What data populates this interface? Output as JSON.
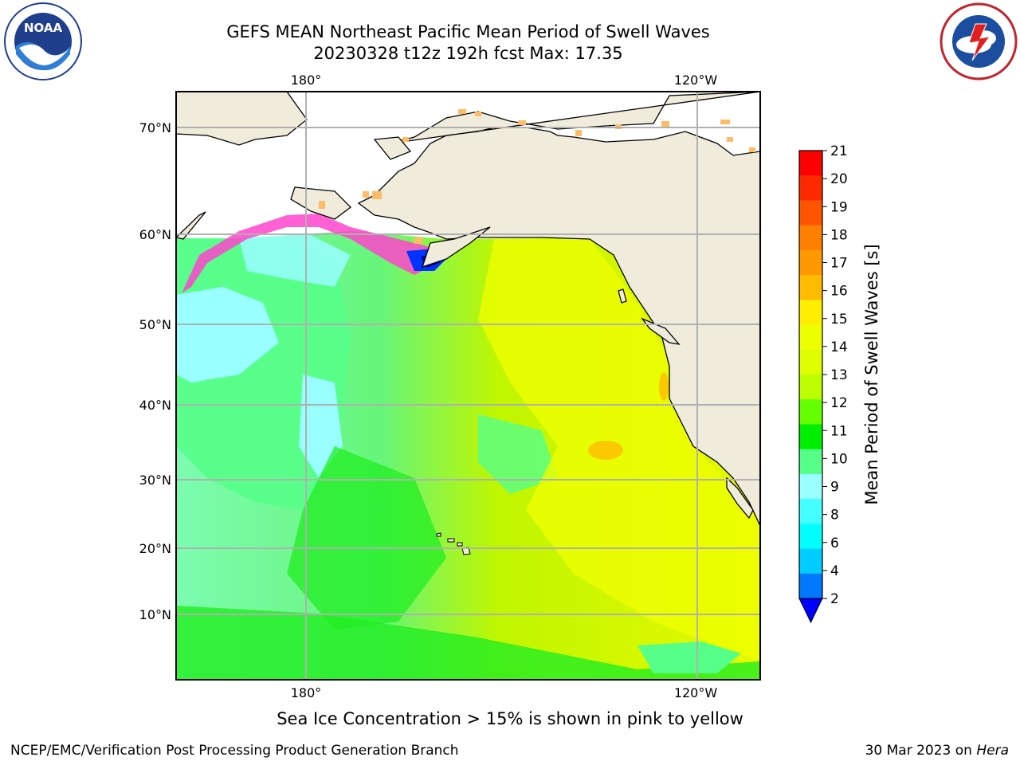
{
  "header": {
    "title_line1": "GEFS MEAN Northeast Pacific Mean Period of Swell Waves",
    "title_line2": "20230328 t12z 192h fcst   Max: 17.35"
  },
  "logos": {
    "left": "noaa-logo",
    "right": "nws-logo"
  },
  "map": {
    "lat_labels": [
      "70°N",
      "60°N",
      "50°N",
      "40°N",
      "30°N",
      "20°N",
      "10°N"
    ],
    "lon_labels_top": [
      "180°",
      "120°W"
    ],
    "lon_labels_bottom": [
      "180°",
      "120°W"
    ],
    "field_colors": {
      "cyan": "#99ffff",
      "green_light": "#55ff88",
      "green": "#22ee22",
      "lime": "#88ff11",
      "yellow_green": "#ccff00",
      "yellow": "#eeff00",
      "orange": "#ffbb00",
      "land": "#efecdc"
    }
  },
  "colorbar": {
    "label": "Mean Period of Swell Waves [s]",
    "ticks": [
      "21",
      "20",
      "19",
      "18",
      "17",
      "16",
      "15",
      "14",
      "13",
      "12",
      "11",
      "10",
      "9",
      "8",
      "6",
      "4",
      "2"
    ],
    "colors_top_to_bottom": [
      "#ff0000",
      "#ff2a00",
      "#ff5500",
      "#ff7f00",
      "#ff9900",
      "#ffbb00",
      "#ffee00",
      "#eeff00",
      "#ddff00",
      "#bbff00",
      "#66ff00",
      "#00ee00",
      "#55ff88",
      "#99ffff",
      "#44ffff",
      "#00ffff",
      "#00ccff",
      "#0077ff"
    ],
    "extend_color": "#0000ff"
  },
  "notes": {
    "sea_ice": "Sea Ice Concentration > 15% is shown in pink to yellow"
  },
  "footer": {
    "left": "NCEP/EMC/Verification Post Processing Product Generation Branch",
    "right_prefix": "30 Mar 2023 on ",
    "right_host": "Hera"
  }
}
